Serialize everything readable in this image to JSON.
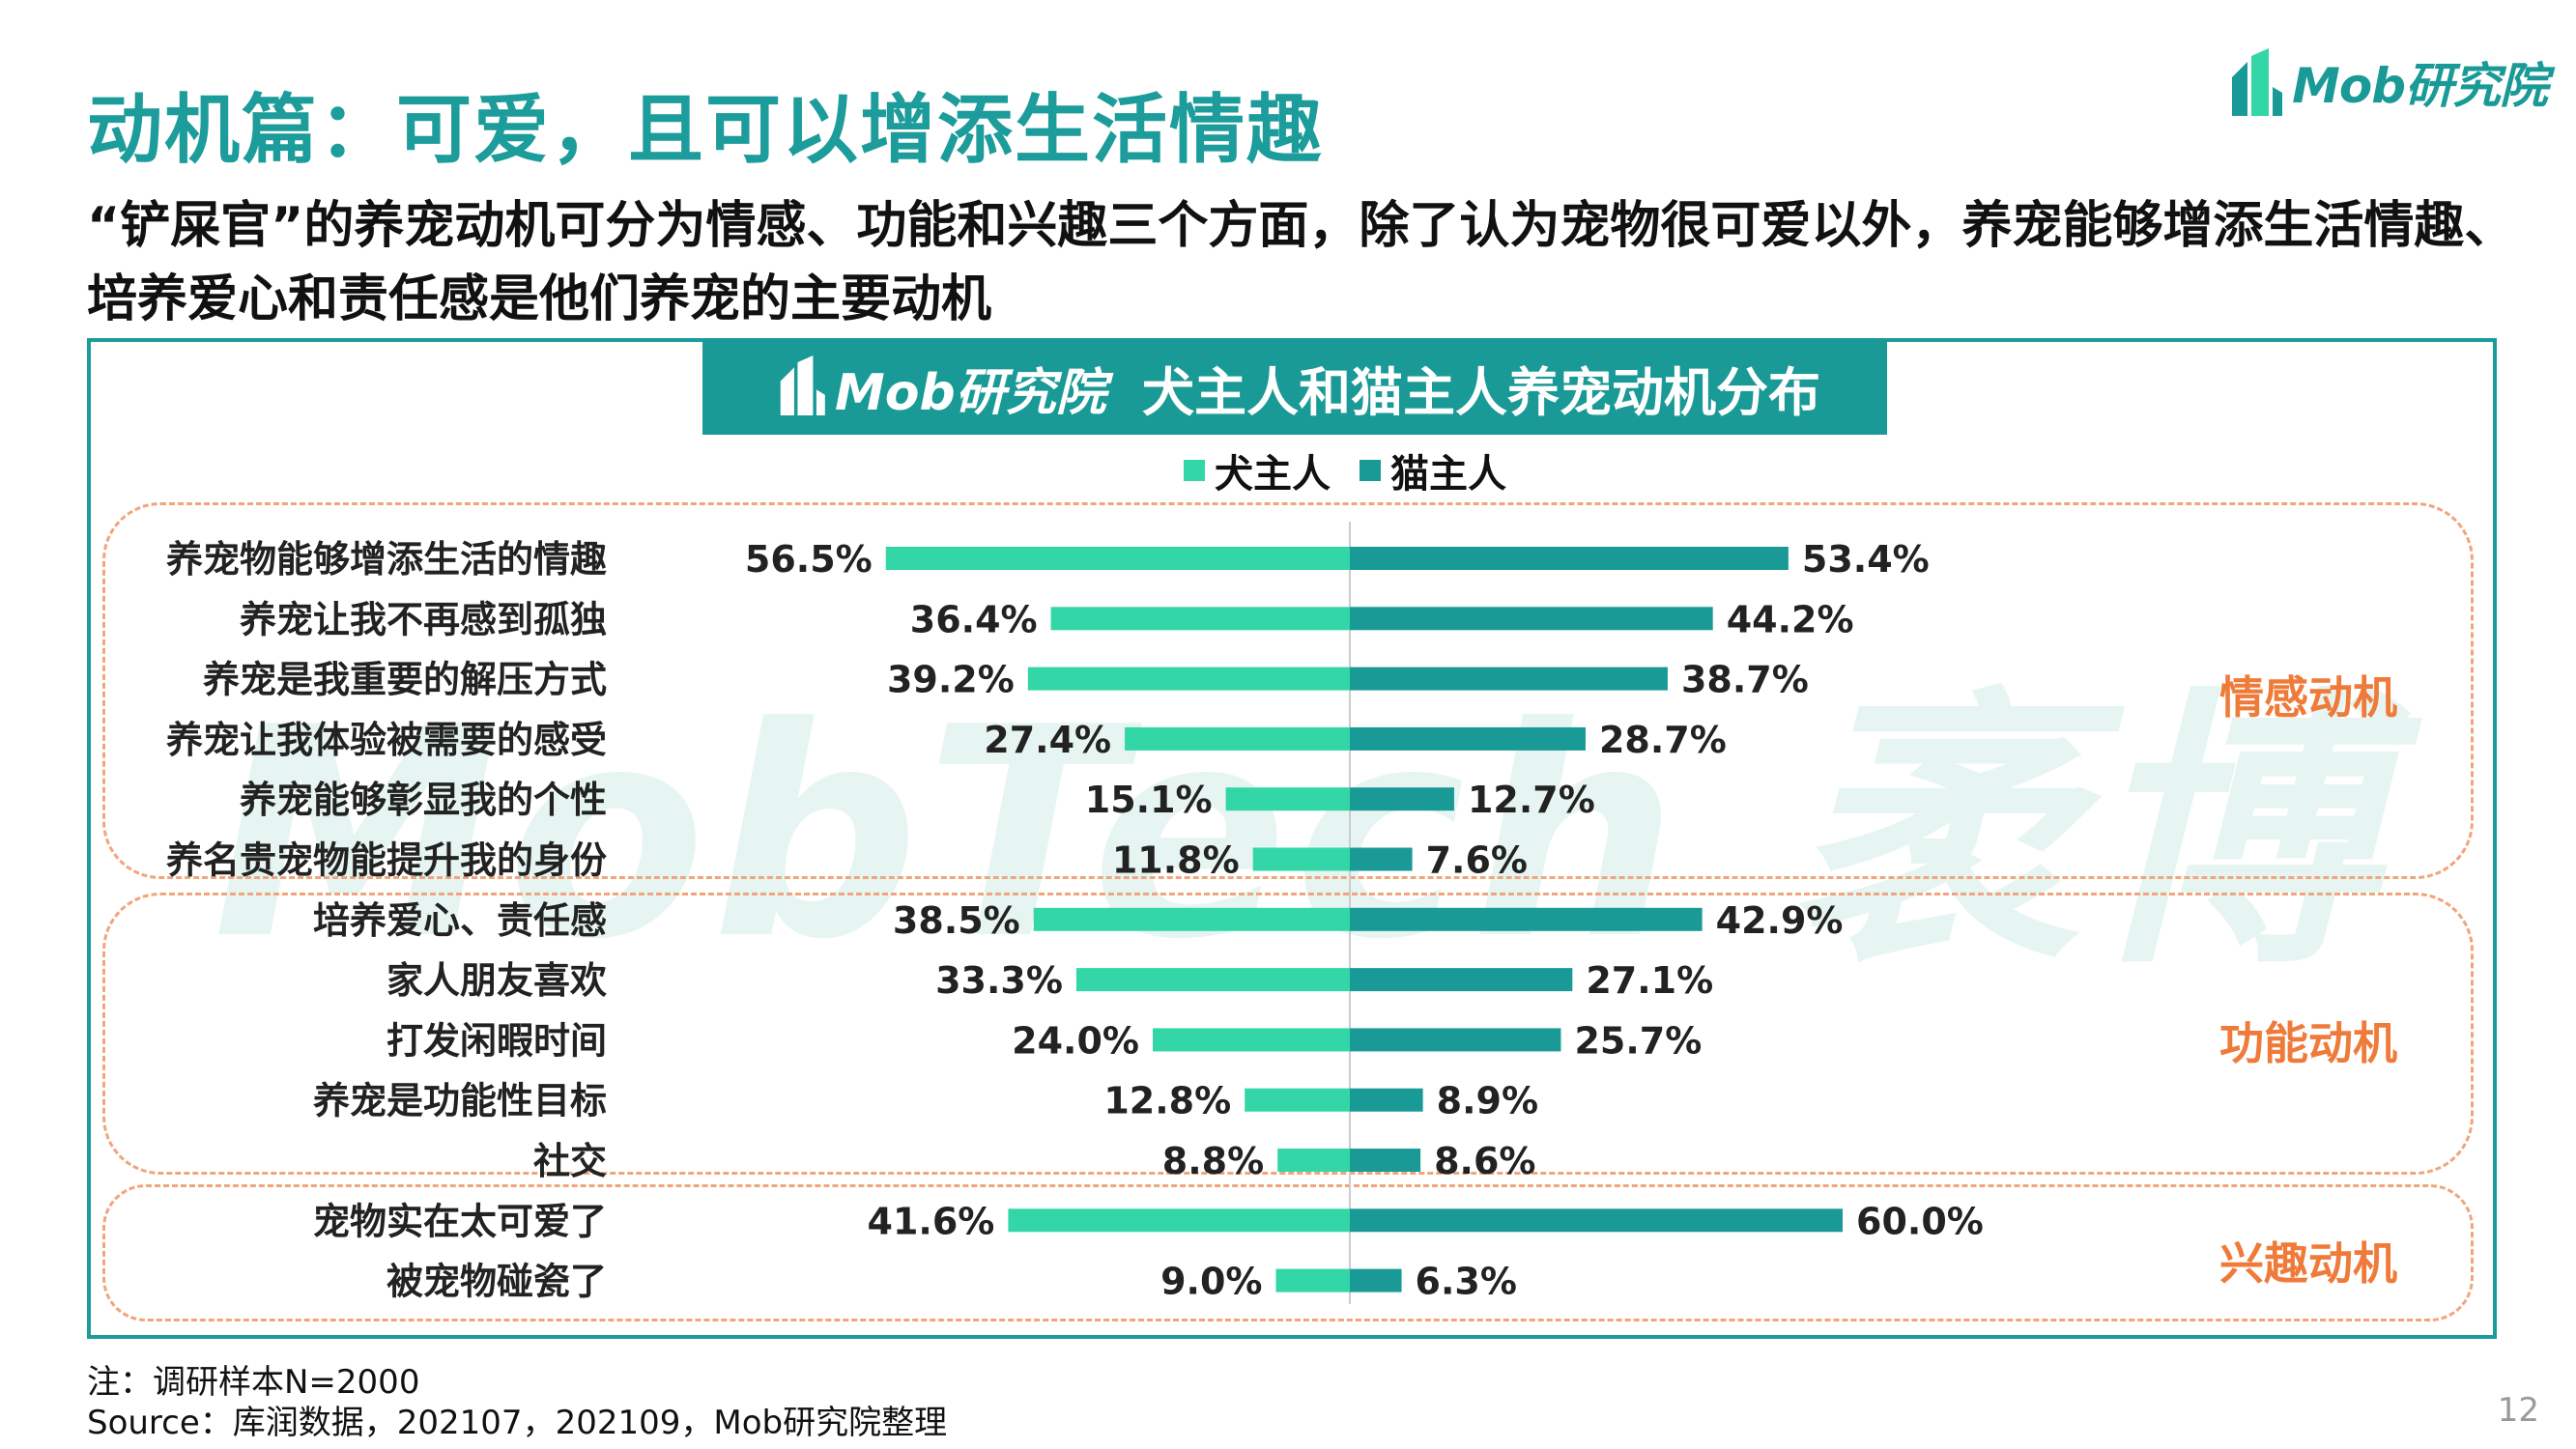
{
  "page": {
    "title": "动机篇：可爱，且可以增添生活情趣",
    "subtitle": "“铲屎官”的养宠动机可分为情感、功能和兴趣三个方面，除了认为宠物很可爱以外，养宠能够增添生活情趣、培养爱心和责任感是他们养宠的主要动机",
    "brand": "Mob研究院",
    "watermark": "MobTech 袤博",
    "note_line1": "注：调研样本N=2000",
    "note_line2": "Source：库润数据，202107，202109，Mob研究院整理",
    "page_number": "12"
  },
  "colors": {
    "accent": "#1c9c9a",
    "dog": "#33d6a6",
    "cat": "#1a9a96",
    "group": "#ef7b3a"
  },
  "groups": [
    {
      "label": "情感动机"
    },
    {
      "label": "功能动机"
    },
    {
      "label": "兴趣动机"
    }
  ],
  "chart_data": {
    "type": "bar",
    "title": "犬主人和猫主人养宠动机分布",
    "categories": [
      "养宠物能够增添生活的情趣",
      "养宠让我不再感到孤独",
      "养宠是我重要的解压方式",
      "养宠让我体验被需要的感受",
      "养宠能够彰显我的个性",
      "养名贵宠物能提升我的身份",
      "培养爱心、责任感",
      "家人朋友喜欢",
      "打发闲暇时间",
      "养宠是功能性目标",
      "社交",
      "宠物实在太可爱了",
      "被宠物碰瓷了"
    ],
    "series": [
      {
        "name": "犬主人",
        "values": [
          56.5,
          36.4,
          39.2,
          27.4,
          15.1,
          11.8,
          38.5,
          33.3,
          24.0,
          12.8,
          8.8,
          41.6,
          9.0
        ]
      },
      {
        "name": "猫主人",
        "values": [
          53.4,
          44.2,
          38.7,
          28.7,
          12.7,
          7.6,
          42.9,
          27.1,
          25.7,
          8.9,
          8.6,
          60.0,
          6.3
        ]
      }
    ],
    "labels": {
      "dog": [
        "56.5%",
        "36.4%",
        "39.2%",
        "27.4%",
        "15.1%",
        "11.8%",
        "38.5%",
        "33.3%",
        "24.0%",
        "12.8%",
        "8.8%",
        "41.6%",
        "9.0%"
      ],
      "cat": [
        "53.4%",
        "44.2%",
        "38.7%",
        "28.7%",
        "12.7%",
        "7.6%",
        "42.9%",
        "27.1%",
        "25.7%",
        "8.9%",
        "8.6%",
        "60.0%",
        "6.3%"
      ]
    },
    "legend_position": "top-center"
  }
}
